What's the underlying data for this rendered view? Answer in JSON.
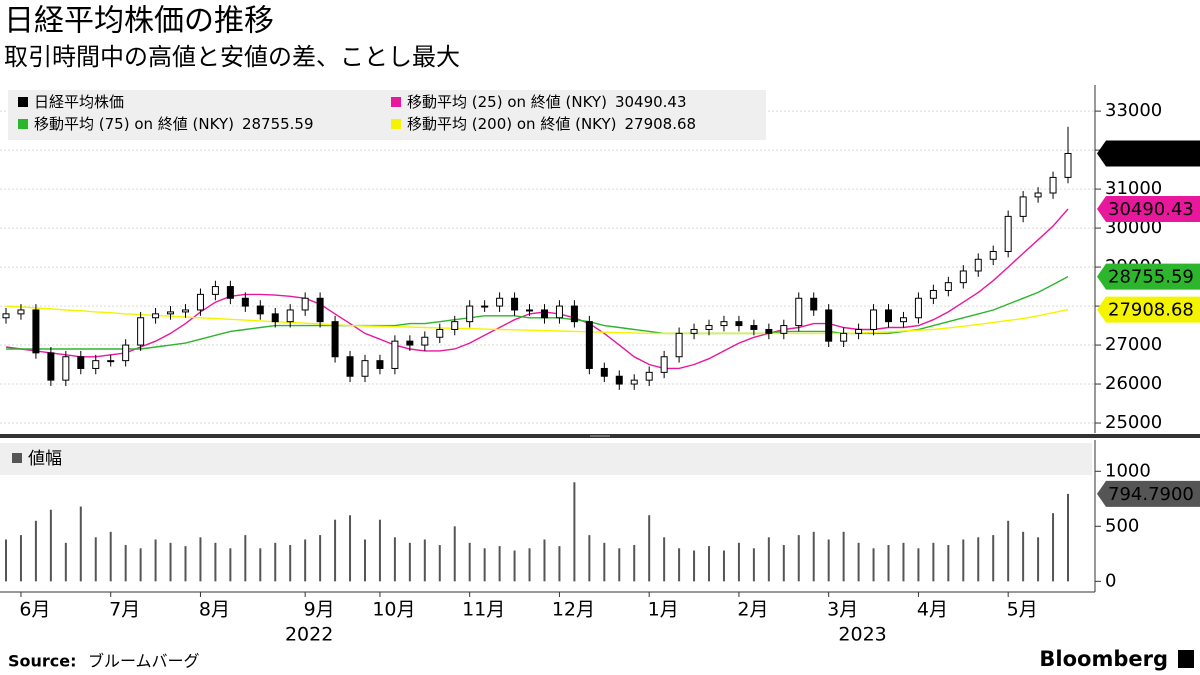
{
  "chart_data": [
    {
      "type": "candlestick",
      "title": "日経平均株価の推移",
      "subtitle": "取引時間中の高値と安値の差、ことし最大",
      "ylim": [
        24770,
        33670
      ],
      "yticks": [
        25000,
        26000,
        27000,
        28000,
        29000,
        30000,
        31000,
        32000,
        33000
      ],
      "grid": true,
      "legend": "top-left",
      "series": [
        {
          "name": "日経平均株価",
          "color": "#000000",
          "open": [
            27700,
            27800,
            27900,
            26800,
            26100,
            26700,
            26400,
            26600,
            26600,
            27000,
            27700,
            27800,
            27850,
            27900,
            28300,
            28500,
            28200,
            28000,
            27800,
            27600,
            27900,
            28200,
            27600,
            26700,
            26200,
            26600,
            26400,
            27100,
            27000,
            27200,
            27400,
            27600,
            28000,
            28000,
            28200,
            27900,
            27900,
            27700,
            28000,
            27600,
            26400,
            26200,
            26000,
            26100,
            26300,
            26700,
            27300,
            27400,
            27500,
            27600,
            27500,
            27400,
            27300,
            27500,
            28200,
            27900,
            27100,
            27300,
            27400,
            27900,
            27600,
            27700,
            28200,
            28400,
            28600,
            28900,
            29200,
            29400,
            30300,
            30800,
            30900,
            31300
          ],
          "high": [
            27950,
            28050,
            28050,
            26950,
            26850,
            26850,
            26750,
            26750,
            27150,
            27850,
            27950,
            28000,
            28050,
            28450,
            28650,
            28650,
            28350,
            28150,
            27950,
            28050,
            28350,
            28350,
            27750,
            26850,
            26750,
            26750,
            27250,
            27250,
            27350,
            27550,
            27750,
            28150,
            28150,
            28350,
            28350,
            28050,
            28050,
            28150,
            28150,
            27750,
            26550,
            26350,
            26250,
            26450,
            26850,
            27450,
            27550,
            27650,
            27750,
            27750,
            27650,
            27550,
            27650,
            28350,
            28350,
            28050,
            27450,
            27550,
            28050,
            28050,
            27850,
            28350,
            28550,
            28750,
            29050,
            29350,
            29550,
            30450,
            30950,
            31050,
            31450,
            32600
          ],
          "low": [
            27550,
            27650,
            26650,
            25950,
            25950,
            26250,
            26250,
            26450,
            26450,
            26850,
            27550,
            27650,
            27700,
            27750,
            28150,
            28050,
            27850,
            27650,
            27450,
            27450,
            27750,
            27450,
            26550,
            26050,
            26050,
            26250,
            26250,
            26850,
            26850,
            27050,
            27250,
            27450,
            27850,
            27850,
            27750,
            27750,
            27550,
            27550,
            27450,
            26250,
            26050,
            25850,
            25850,
            25950,
            26150,
            26550,
            27150,
            27250,
            27350,
            27350,
            27250,
            27150,
            27150,
            27350,
            27750,
            26950,
            26950,
            27150,
            27250,
            27450,
            27450,
            27550,
            28050,
            28250,
            28450,
            28750,
            29050,
            29250,
            30150,
            30650,
            30750,
            31150
          ],
          "close": [
            27800,
            27900,
            26800,
            26100,
            26700,
            26400,
            26600,
            26600,
            27000,
            27700,
            27800,
            27850,
            27900,
            28300,
            28500,
            28200,
            28000,
            27800,
            27600,
            27900,
            28200,
            27600,
            26700,
            26200,
            26600,
            26400,
            27100,
            27000,
            27200,
            27400,
            27600,
            28000,
            28000,
            28200,
            27900,
            27900,
            27700,
            28000,
            27600,
            26400,
            26200,
            26000,
            26100,
            26300,
            26700,
            27300,
            27400,
            27500,
            27600,
            27500,
            27400,
            27300,
            27500,
            28200,
            27900,
            27100,
            27300,
            27400,
            27900,
            27600,
            27700,
            28200,
            28400,
            28600,
            28900,
            29200,
            29400,
            30300,
            30800,
            30900,
            31300,
            31913.74
          ]
        },
        {
          "name": "移動平均 (25) on 終値 (NKY)",
          "color": "#e8189c",
          "values": [
            26950,
            26900,
            26850,
            26800,
            26750,
            26700,
            26700,
            26750,
            26800,
            26950,
            27100,
            27300,
            27550,
            27850,
            28100,
            28250,
            28300,
            28300,
            28280,
            28250,
            28200,
            28050,
            27800,
            27550,
            27300,
            27150,
            27000,
            26900,
            26850,
            26850,
            26900,
            27050,
            27250,
            27450,
            27650,
            27800,
            27850,
            27800,
            27700,
            27550,
            27300,
            27000,
            26700,
            26500,
            26400,
            26400,
            26500,
            26650,
            26850,
            27050,
            27200,
            27300,
            27400,
            27450,
            27550,
            27550,
            27450,
            27400,
            27400,
            27450,
            27450,
            27500,
            27650,
            27850,
            28100,
            28350,
            28650,
            29000,
            29350,
            29700,
            30050,
            30490.43
          ]
        },
        {
          "name": "移動平均 (75) on 終値 (NKY)",
          "color": "#2db52d",
          "values": [
            26900,
            26900,
            26900,
            26900,
            26900,
            26900,
            26900,
            26900,
            26900,
            26900,
            26950,
            27000,
            27050,
            27150,
            27250,
            27350,
            27400,
            27450,
            27500,
            27500,
            27500,
            27500,
            27500,
            27500,
            27500,
            27500,
            27500,
            27550,
            27550,
            27600,
            27650,
            27700,
            27750,
            27750,
            27750,
            27700,
            27700,
            27700,
            27650,
            27600,
            27500,
            27450,
            27400,
            27350,
            27300,
            27300,
            27300,
            27300,
            27300,
            27300,
            27300,
            27300,
            27350,
            27350,
            27350,
            27350,
            27300,
            27300,
            27300,
            27300,
            27350,
            27400,
            27500,
            27600,
            27700,
            27800,
            27900,
            28050,
            28200,
            28350,
            28550,
            28755.59
          ]
        },
        {
          "name": "移動平均 (200) on 終値 (NKY)",
          "color": "#f4f400",
          "values": [
            28000,
            27980,
            27950,
            27930,
            27900,
            27880,
            27850,
            27830,
            27800,
            27780,
            27760,
            27740,
            27720,
            27700,
            27680,
            27660,
            27640,
            27620,
            27600,
            27580,
            27560,
            27540,
            27520,
            27500,
            27490,
            27480,
            27470,
            27460,
            27450,
            27440,
            27430,
            27420,
            27410,
            27400,
            27390,
            27380,
            27370,
            27360,
            27350,
            27340,
            27330,
            27320,
            27310,
            27300,
            27300,
            27300,
            27300,
            27300,
            27300,
            27300,
            27300,
            27300,
            27300,
            27300,
            27300,
            27300,
            27300,
            27310,
            27320,
            27340,
            27360,
            27380,
            27400,
            27440,
            27480,
            27530,
            27580,
            27630,
            27680,
            27750,
            27830,
            27908.68
          ]
        }
      ]
    },
    {
      "type": "bar",
      "title": "値幅",
      "color": "#555555",
      "ylim": [
        -97,
        1248
      ],
      "yticks": [
        0,
        500,
        1000
      ],
      "categories": [
        null,
        "6月",
        null,
        null,
        null,
        null,
        null,
        "7月",
        null,
        null,
        null,
        null,
        null,
        "8月",
        null,
        null,
        null,
        null,
        null,
        null,
        "9月",
        null,
        null,
        null,
        null,
        "10月",
        null,
        null,
        null,
        null,
        null,
        "11月",
        null,
        null,
        null,
        null,
        null,
        "12月",
        null,
        null,
        null,
        null,
        null,
        "1月",
        null,
        null,
        null,
        null,
        null,
        "2月",
        null,
        null,
        null,
        null,
        null,
        "3月",
        null,
        null,
        null,
        null,
        null,
        "4月",
        null,
        null,
        null,
        null,
        null,
        "5月",
        null,
        null,
        null,
        null
      ],
      "year_categories": [
        null,
        null,
        null,
        null,
        null,
        null,
        null,
        null,
        null,
        null,
        null,
        null,
        null,
        null,
        null,
        null,
        null,
        null,
        null,
        null,
        "2022",
        null,
        null,
        null,
        null,
        null,
        null,
        null,
        null,
        null,
        null,
        null,
        null,
        null,
        null,
        null,
        null,
        null,
        null,
        null,
        null,
        null,
        null,
        null,
        null,
        null,
        null,
        null,
        null,
        null,
        null,
        null,
        null,
        null,
        null,
        null,
        null,
        "2023",
        null,
        null,
        null,
        null,
        null,
        null,
        null,
        null,
        null,
        null,
        null,
        null,
        null,
        null
      ],
      "values": [
        380,
        420,
        550,
        650,
        350,
        680,
        400,
        450,
        330,
        300,
        380,
        350,
        320,
        400,
        350,
        300,
        420,
        300,
        350,
        330,
        380,
        420,
        560,
        600,
        380,
        560,
        400,
        350,
        380,
        330,
        500,
        350,
        300,
        320,
        280,
        300,
        380,
        320,
        900,
        420,
        350,
        300,
        330,
        600,
        400,
        300,
        280,
        320,
        280,
        350,
        300,
        400,
        330,
        420,
        450,
        380,
        450,
        350,
        300,
        330,
        350,
        300,
        350,
        330,
        380,
        400,
        420,
        550,
        450,
        400,
        620,
        794.79
      ],
      "value_labels": [
        null,
        null,
        null,
        null,
        null,
        null,
        null,
        null,
        null,
        null,
        null,
        null,
        null,
        null,
        null,
        null,
        null,
        null,
        null,
        null,
        null,
        null,
        null,
        null,
        null,
        null,
        null,
        null,
        null,
        null,
        null,
        null,
        null,
        null,
        null,
        null,
        null,
        null,
        null,
        null,
        null,
        null,
        null,
        null,
        null,
        null,
        null,
        null,
        null,
        null,
        null,
        null,
        null,
        null,
        null,
        null,
        null,
        null,
        null,
        null,
        null,
        null,
        null,
        null,
        null,
        null,
        null,
        null,
        null,
        null,
        null,
        "794.7900"
      ]
    }
  ],
  "source": {
    "label": "Source:",
    "text": "ブルームバーグ"
  },
  "logo": "Bloomberg"
}
